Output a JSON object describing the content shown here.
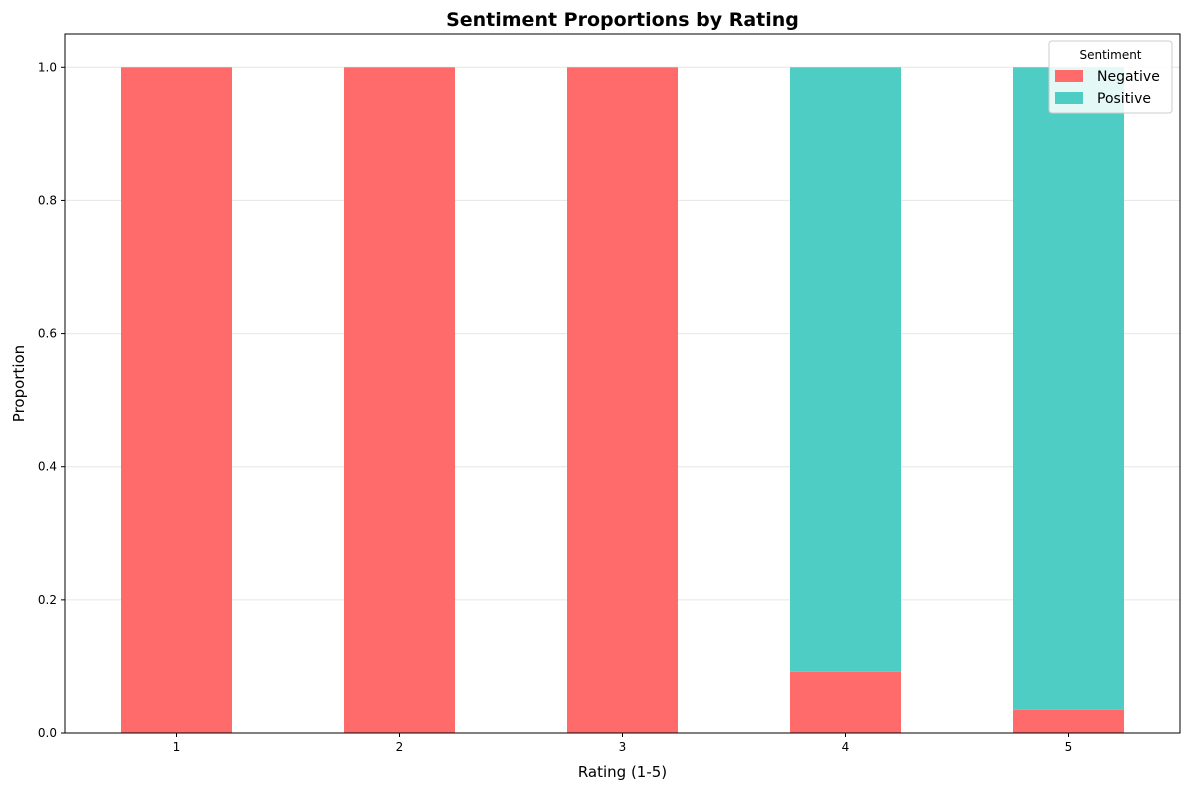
{
  "chart_data": {
    "type": "bar",
    "stacked": true,
    "title": "Sentiment Proportions by Rating",
    "xlabel": "Rating (1-5)",
    "ylabel": "Proportion",
    "categories": [
      "1",
      "2",
      "3",
      "4",
      "5"
    ],
    "ylim": [
      0,
      1.05
    ],
    "yticks": [
      0.0,
      0.2,
      0.4,
      0.6,
      0.8,
      1.0
    ],
    "ytick_labels": [
      "0.0",
      "0.2",
      "0.4",
      "0.6",
      "0.8",
      "1.0"
    ],
    "grid": "horizontal",
    "series": [
      {
        "name": "Negative",
        "values": [
          1.0,
          1.0,
          1.0,
          0.092,
          0.035
        ],
        "color": "#ff6b6b"
      },
      {
        "name": "Positive",
        "values": [
          0.0,
          0.0,
          0.0,
          0.908,
          0.965
        ],
        "color": "#4ecdc4"
      }
    ],
    "legend": {
      "title": "Sentiment",
      "position": "upper-right"
    }
  }
}
